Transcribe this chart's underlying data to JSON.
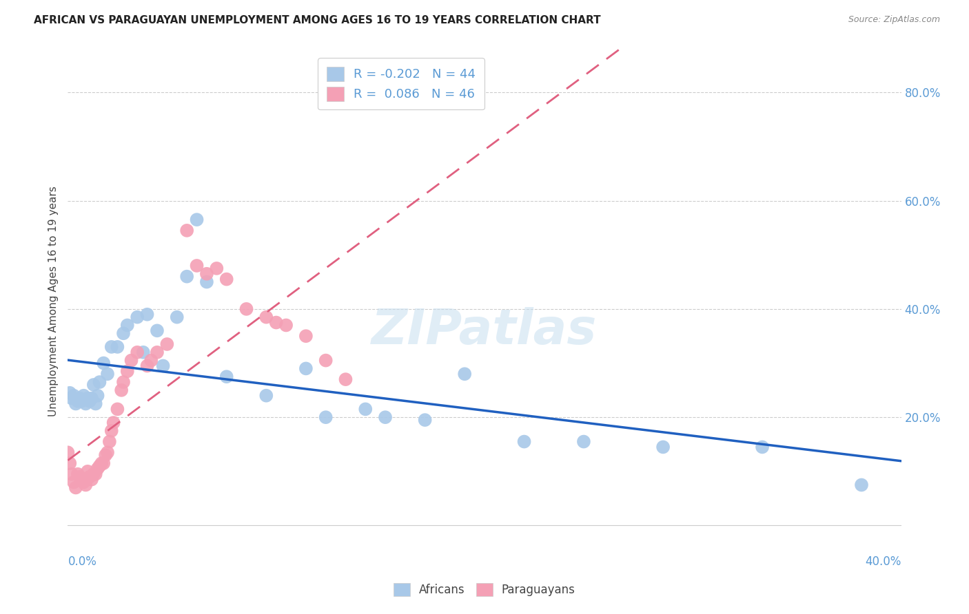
{
  "title": "AFRICAN VS PARAGUAYAN UNEMPLOYMENT AMONG AGES 16 TO 19 YEARS CORRELATION CHART",
  "source": "Source: ZipAtlas.com",
  "ylabel": "Unemployment Among Ages 16 to 19 years",
  "xlim": [
    0.0,
    0.42
  ],
  "ylim": [
    -0.05,
    0.88
  ],
  "african_R": -0.202,
  "african_N": 44,
  "paraguayan_R": 0.086,
  "paraguayan_N": 46,
  "african_color": "#a8c8e8",
  "paraguayan_color": "#f4a0b5",
  "trend_african_color": "#2060c0",
  "trend_paraguayan_color": "#e06080",
  "background_color": "#ffffff",
  "ytick_vals": [
    0.2,
    0.4,
    0.6,
    0.8
  ],
  "ytick_labels": [
    "20.0%",
    "40.0%",
    "60.0%",
    "80.0%"
  ],
  "african_x": [
    0.001,
    0.002,
    0.003,
    0.004,
    0.005,
    0.006,
    0.007,
    0.008,
    0.009,
    0.01,
    0.011,
    0.012,
    0.013,
    0.014,
    0.015,
    0.016,
    0.018,
    0.02,
    0.022,
    0.025,
    0.028,
    0.03,
    0.035,
    0.038,
    0.04,
    0.045,
    0.048,
    0.055,
    0.06,
    0.065,
    0.07,
    0.08,
    0.1,
    0.12,
    0.13,
    0.15,
    0.16,
    0.18,
    0.2,
    0.23,
    0.26,
    0.3,
    0.35,
    0.4
  ],
  "african_y": [
    0.245,
    0.235,
    0.24,
    0.225,
    0.23,
    0.235,
    0.23,
    0.24,
    0.225,
    0.235,
    0.23,
    0.235,
    0.26,
    0.225,
    0.24,
    0.265,
    0.3,
    0.28,
    0.33,
    0.33,
    0.355,
    0.37,
    0.385,
    0.32,
    0.39,
    0.36,
    0.295,
    0.385,
    0.46,
    0.565,
    0.45,
    0.275,
    0.24,
    0.29,
    0.2,
    0.215,
    0.2,
    0.195,
    0.28,
    0.155,
    0.155,
    0.145,
    0.145,
    0.075
  ],
  "paraguayan_x": [
    0.0,
    0.001,
    0.002,
    0.003,
    0.004,
    0.005,
    0.006,
    0.007,
    0.008,
    0.009,
    0.01,
    0.011,
    0.012,
    0.013,
    0.014,
    0.015,
    0.016,
    0.017,
    0.018,
    0.019,
    0.02,
    0.021,
    0.022,
    0.023,
    0.025,
    0.027,
    0.028,
    0.03,
    0.032,
    0.035,
    0.04,
    0.042,
    0.045,
    0.05,
    0.06,
    0.065,
    0.07,
    0.075,
    0.08,
    0.09,
    0.1,
    0.105,
    0.11,
    0.12,
    0.13,
    0.14
  ],
  "paraguayan_y": [
    0.135,
    0.115,
    0.095,
    0.08,
    0.07,
    0.095,
    0.09,
    0.085,
    0.08,
    0.075,
    0.1,
    0.09,
    0.085,
    0.095,
    0.095,
    0.105,
    0.11,
    0.115,
    0.115,
    0.13,
    0.135,
    0.155,
    0.175,
    0.19,
    0.215,
    0.25,
    0.265,
    0.285,
    0.305,
    0.32,
    0.295,
    0.305,
    0.32,
    0.335,
    0.545,
    0.48,
    0.465,
    0.475,
    0.455,
    0.4,
    0.385,
    0.375,
    0.37,
    0.35,
    0.305,
    0.27
  ]
}
